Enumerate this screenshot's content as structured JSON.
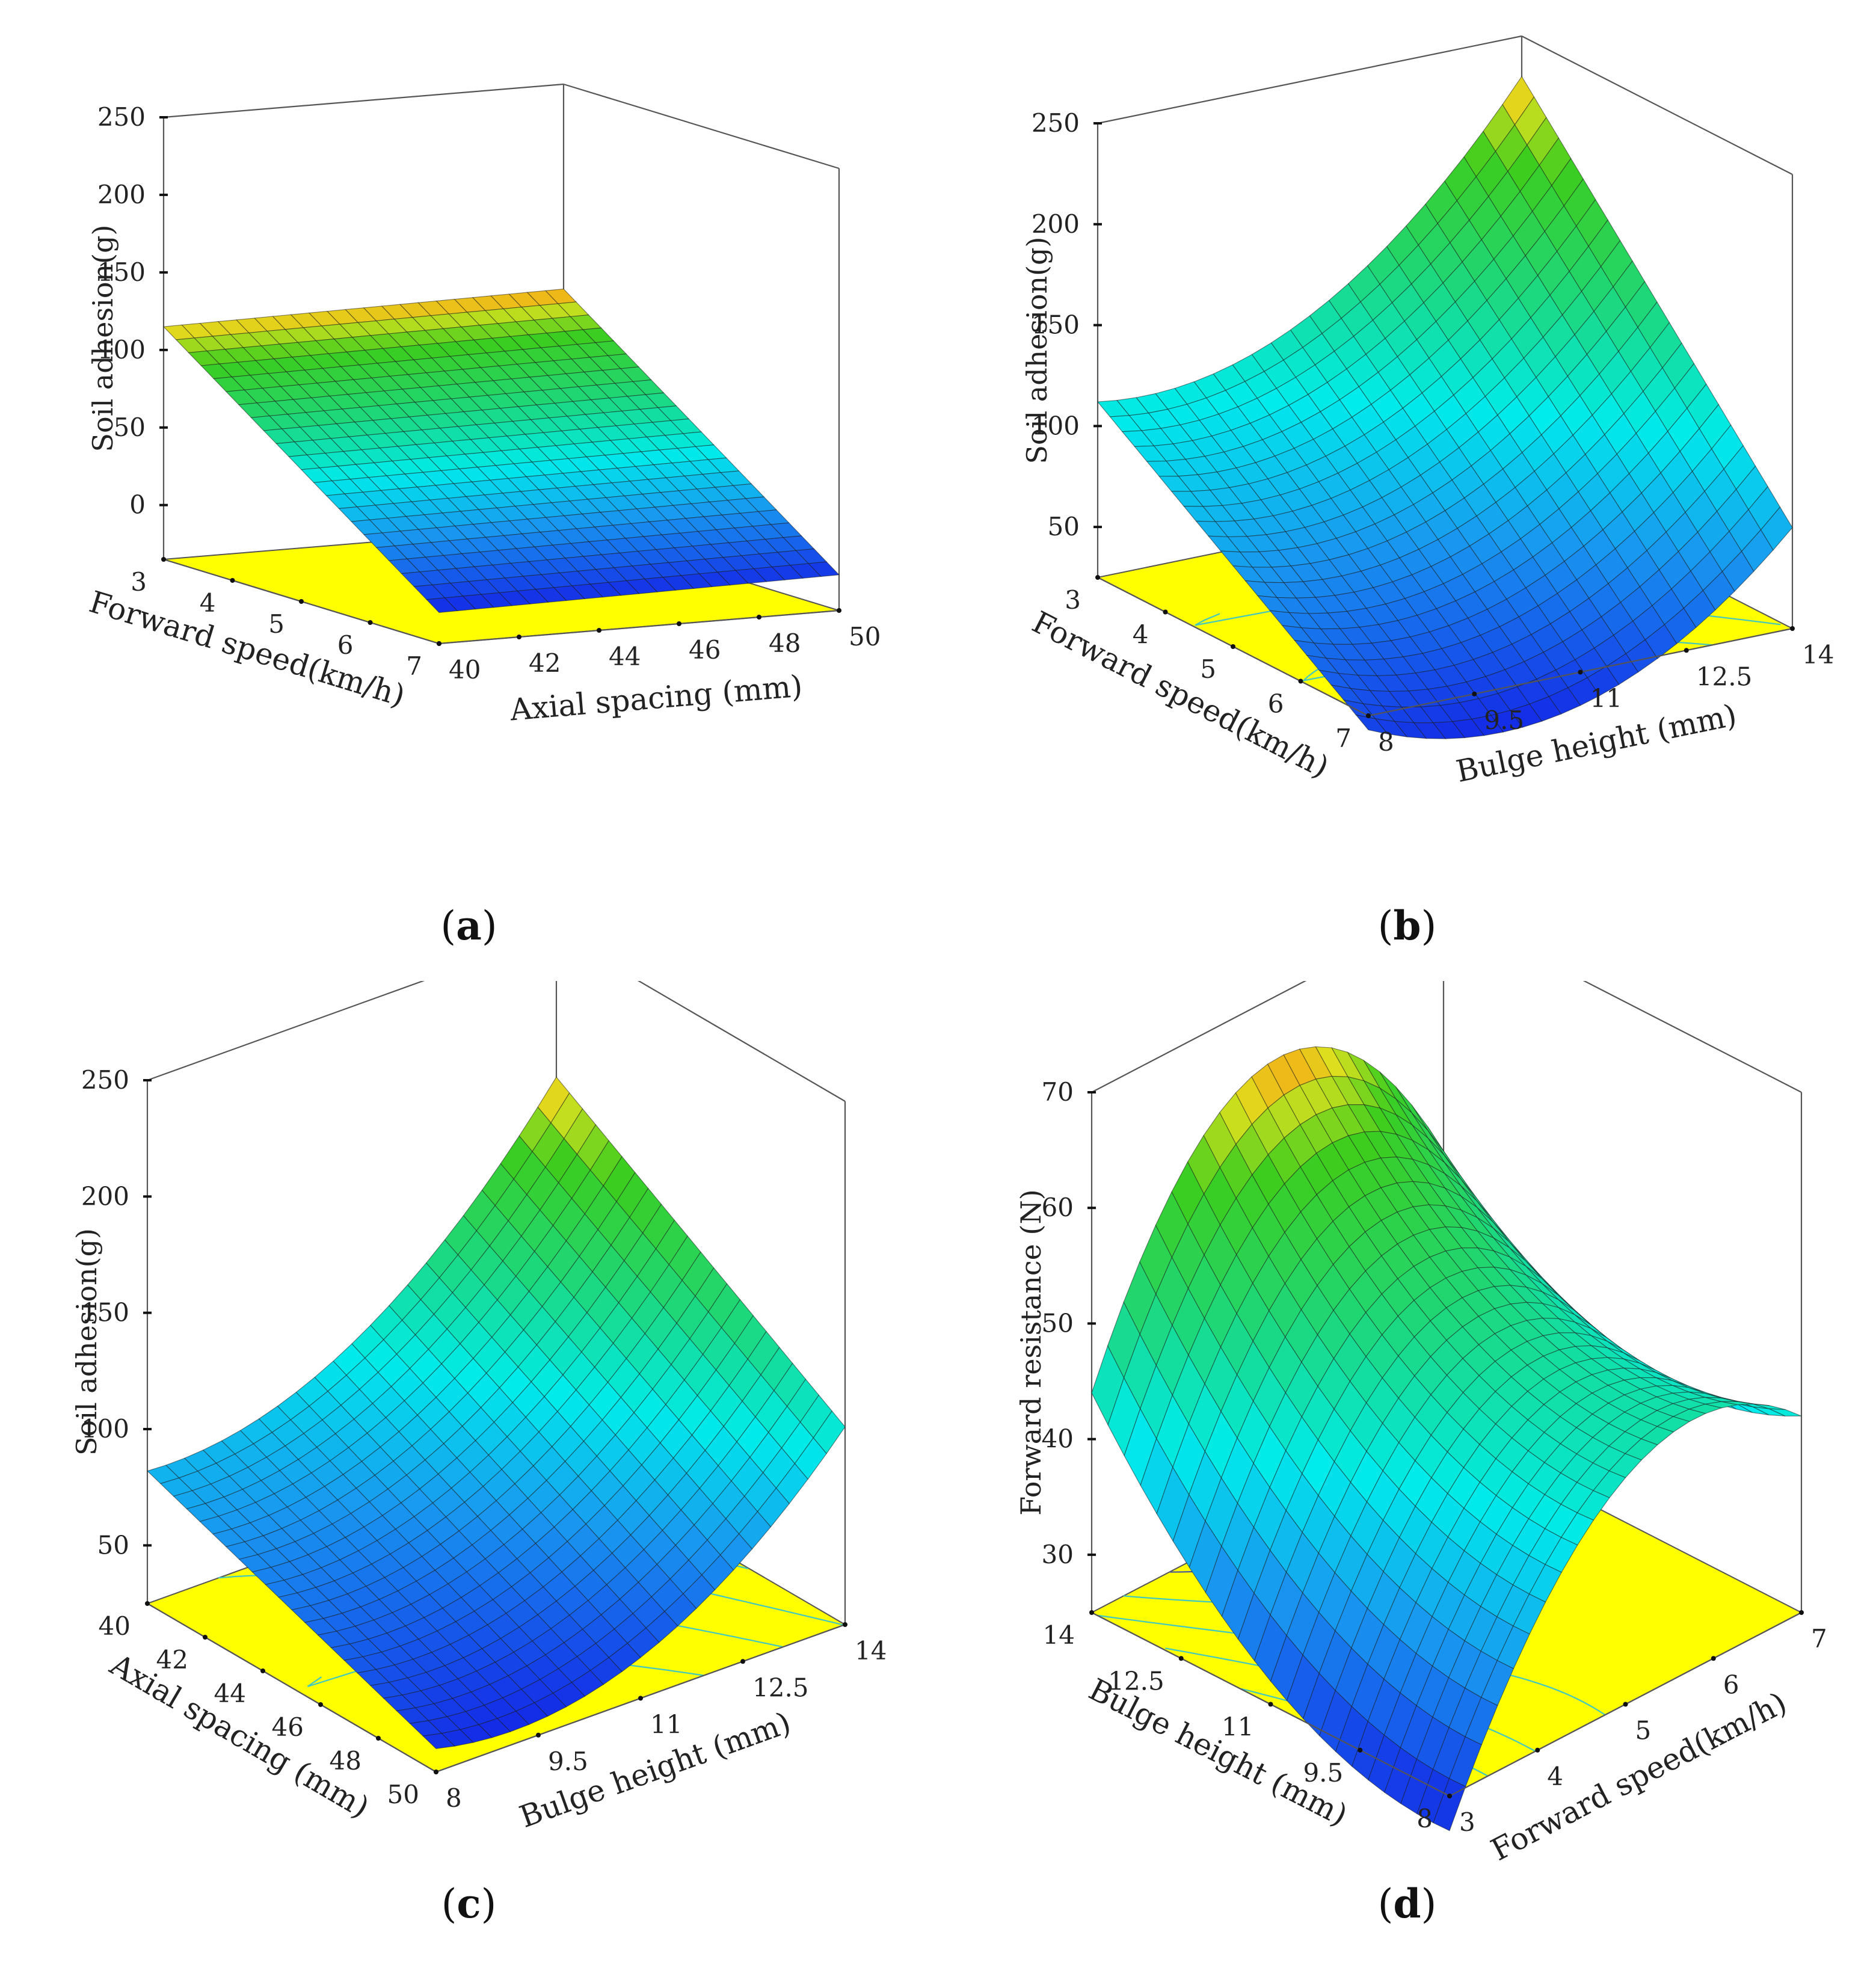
{
  "colors": {
    "base": "#ffff00",
    "frame": "#555555",
    "mesh": "#1a1a1a",
    "contour": "#40c8c0",
    "contour_dark": "#4a5a9a"
  },
  "chart_data": [
    {
      "type": "surface3d",
      "panel": "a",
      "caption_letter": "a",
      "zlabel": "Soil adhesion(g)",
      "xlabel": "Axial spacing (mm)",
      "ylabel": "Forward speed(km/h)",
      "xticks": [
        "40",
        "42",
        "44",
        "46",
        "48",
        "50"
      ],
      "yticks": [
        "3",
        "4",
        "5",
        "6",
        "7"
      ],
      "zticks": [
        "0",
        "50",
        "100",
        "150",
        "200",
        "250"
      ],
      "zlim": [
        -35,
        250
      ],
      "corner_values": {
        "x_lo_y_lo": 115,
        "x_hi_y_lo": 118,
        "x_lo_y_hi": -15,
        "x_hi_y_hi": -12
      },
      "curvature_x": 0,
      "curvature_y": 0
    },
    {
      "type": "surface3d",
      "panel": "b",
      "caption_letter": "b",
      "zlabel": "Soil adhesion(g)",
      "xlabel": "Bulge height (mm)",
      "ylabel": "Forward speed(km/h)",
      "xticks": [
        "8",
        "9.5",
        "11",
        "12.5",
        "14"
      ],
      "yticks": [
        "3",
        "4",
        "5",
        "6",
        "7"
      ],
      "zticks": [
        "50",
        "100",
        "150",
        "200",
        "250"
      ],
      "zlim": [
        25,
        250
      ],
      "corner_values": {
        "x_lo_y_lo": 112,
        "x_hi_y_lo": 230,
        "x_lo_y_hi": 18,
        "x_hi_y_hi": 75
      },
      "curvature_x": 38,
      "curvature_y": 0
    },
    {
      "type": "surface3d",
      "panel": "c",
      "caption_letter": "c",
      "zlabel": "Soil adhesion(g)",
      "xlabel": "Bulge height (mm)",
      "ylabel": "Axial spacing (mm)",
      "xticks": [
        "8",
        "9.5",
        "11",
        "12.5",
        "14"
      ],
      "yticks": [
        "40",
        "42",
        "44",
        "46",
        "48",
        "50"
      ],
      "zticks": [
        "50",
        "100",
        "150",
        "200",
        "250"
      ],
      "zlim": [
        25,
        250
      ],
      "corner_values": {
        "x_lo_y_lo": 82,
        "x_hi_y_lo": 188,
        "x_lo_y_hi": 35,
        "x_hi_y_hi": 110
      },
      "curvature_x": 30,
      "curvature_y": 0
    },
    {
      "type": "surface3d",
      "panel": "d",
      "caption_letter": "d",
      "zlabel": "Forward resistance (N)",
      "xlabel": "Forward speed(km/h)",
      "ylabel": "Bulge height (mm)",
      "xticks": [
        "3",
        "4",
        "5",
        "6",
        "7"
      ],
      "yticks": [
        "14",
        "12.5",
        "11",
        "9.5",
        "8"
      ],
      "zticks": [
        "30",
        "40",
        "50",
        "60",
        "70"
      ],
      "zlim": [
        25,
        70
      ],
      "corner_values": {
        "x_lo_y_lo": 44,
        "x_hi_y_lo": 49,
        "x_lo_y_hi": 22,
        "x_hi_y_hi": 42
      },
      "curvature_x": -14,
      "curvature_y": 0
    }
  ]
}
